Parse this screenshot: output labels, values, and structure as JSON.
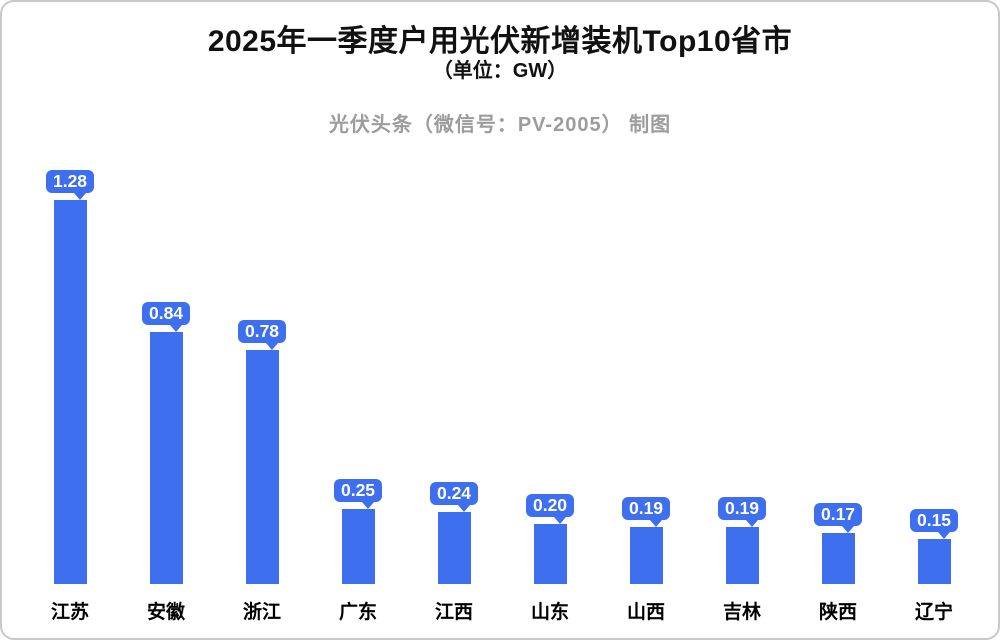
{
  "header": {
    "title": "2025年一季度户用光伏新增装机Top10省市",
    "subtitle": "（单位：GW）",
    "credit": "光伏头条（微信号：PV-2005） 制图"
  },
  "chart_data": {
    "type": "bar",
    "title": "2025年一季度户用光伏新增装机Top10省市",
    "unit": "GW",
    "categories": [
      "江苏",
      "安徽",
      "浙江",
      "广东",
      "江西",
      "山东",
      "山西",
      "吉林",
      "陕西",
      "辽宁"
    ],
    "values": [
      1.28,
      0.84,
      0.78,
      0.25,
      0.24,
      0.2,
      0.19,
      0.19,
      0.17,
      0.15
    ],
    "value_labels": [
      "1.28",
      "0.84",
      "0.78",
      "0.25",
      "0.24",
      "0.20",
      "0.19",
      "0.19",
      "0.17",
      "0.15"
    ],
    "xlabel": "",
    "ylabel": "",
    "ylim": [
      0,
      1.4
    ],
    "grid": false,
    "legend": false,
    "label_style": "speech-bubble-badge",
    "colors": {
      "bar": "#3d6fee",
      "badge_fill": "#3d6fee",
      "badge_border": "#ffffff",
      "badge_text": "#ffffff",
      "title_text": "#111111",
      "credit_text": "#9c9c9c",
      "frame_border": "#c8c8c8",
      "background": "#ffffff"
    }
  }
}
